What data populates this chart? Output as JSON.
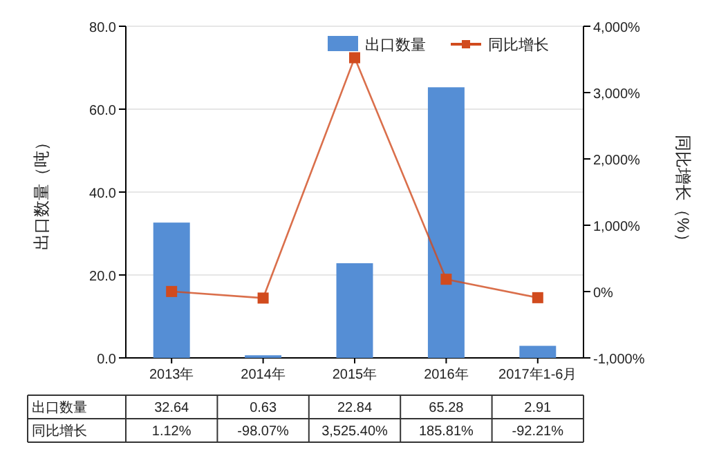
{
  "chart_data": {
    "type": "bar",
    "ylabel": "出口数量（吨）",
    "y2label": "同比增长（%）",
    "categories": [
      "2013年",
      "2014年",
      "2015年",
      "2016年",
      "2017年1-6月"
    ],
    "series": [
      {
        "name": "出口数量",
        "color": "#558ed5",
        "values": [
          32.64,
          0.63,
          22.84,
          65.28,
          2.91
        ],
        "value_labels": [
          "32.64",
          "0.63",
          "22.84",
          "65.28",
          "2.91"
        ]
      },
      {
        "name": "同比增长",
        "type": "line",
        "axis": "y2",
        "color": "#d14b1e",
        "marker": "square",
        "values": [
          1.12,
          -98.07,
          3525.4,
          185.81,
          -92.21
        ],
        "value_labels": [
          "1.12%",
          "-98.07%",
          "3,525.40%",
          "185.81%",
          "-92.21%"
        ]
      }
    ],
    "ylim": [
      0,
      80
    ],
    "yticks": [
      {
        "value": 0,
        "label": "0.0"
      },
      {
        "value": 20,
        "label": "20.0"
      },
      {
        "value": 40,
        "label": "40.0"
      },
      {
        "value": 60,
        "label": "60.0"
      },
      {
        "value": 80,
        "label": "80.0"
      }
    ],
    "y2lim": [
      -1000,
      4000
    ],
    "y2ticks": [
      {
        "value": -1000,
        "label": "-1,000%"
      },
      {
        "value": 0,
        "label": "0%"
      },
      {
        "value": 1000,
        "label": "1,000%"
      },
      {
        "value": 2000,
        "label": "2,000%"
      },
      {
        "value": 3000,
        "label": "3,000%"
      },
      {
        "value": 4000,
        "label": "4,000%"
      }
    ],
    "grid": "y",
    "legend": "top right"
  }
}
